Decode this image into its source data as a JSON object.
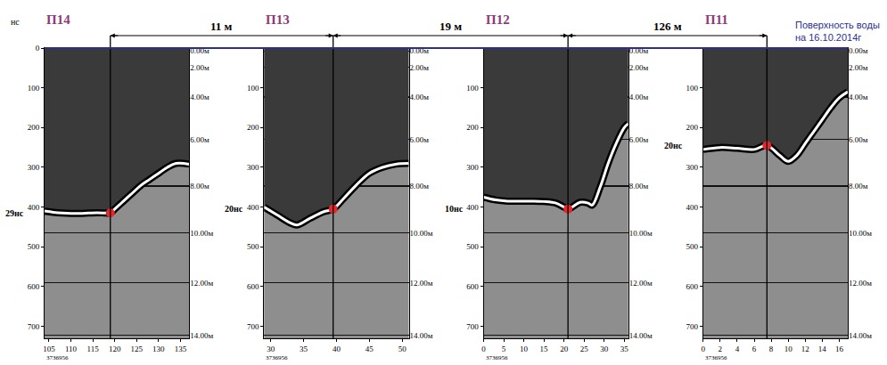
{
  "chart_data": [
    {
      "type": "line",
      "title": "П14",
      "ylabel": "нс",
      "x": [
        104,
        106,
        108,
        110,
        112,
        114,
        116,
        118,
        119,
        120,
        122,
        124,
        126,
        128,
        130,
        132,
        134,
        137
      ],
      "values": [
        410,
        413,
        415,
        416,
        416,
        415,
        414,
        415,
        415,
        405,
        385,
        365,
        345,
        330,
        315,
        300,
        290,
        292
      ],
      "color": "#ffffff",
      "point": {
        "x": 119,
        "y": 415,
        "label": "29нс",
        "color": "#e8262b",
        "marker": "circle"
      },
      "xlim": [
        104,
        137
      ],
      "xticks": [
        105,
        110,
        115,
        120,
        125,
        130,
        135
      ],
      "ylim": [
        0,
        730
      ],
      "yticks": [
        0,
        100,
        200,
        300,
        400,
        500,
        600,
        700
      ],
      "y2lim": [
        0,
        730
      ],
      "y2ticks": [
        {
          "value": 7,
          "label": "0.00м"
        },
        {
          "value": 48,
          "label": "2.00м"
        },
        {
          "value": 123,
          "label": "4.00м"
        },
        {
          "value": 230,
          "label": "6.00м"
        },
        {
          "value": 347,
          "label": "8.00м"
        },
        {
          "value": 465,
          "label": "10.00м"
        },
        {
          "value": 590,
          "label": "12.00м"
        },
        {
          "value": 722,
          "label": "14.00м"
        }
      ],
      "grid": true,
      "note": "3736956",
      "distance_to_next": "11 м"
    },
    {
      "type": "line",
      "title": "П13",
      "x": [
        29,
        31,
        33,
        34,
        36,
        38,
        39.5,
        41,
        43,
        45,
        47,
        49,
        51
      ],
      "values": [
        400,
        420,
        440,
        445,
        428,
        412,
        405,
        380,
        345,
        315,
        300,
        292,
        290
      ],
      "color": "#ffffff",
      "point": {
        "x": 39.5,
        "y": 405,
        "label": "20нс",
        "color": "#e8262b",
        "marker": "circle"
      },
      "xlim": [
        29,
        51
      ],
      "xticks": [
        30,
        35,
        40,
        45,
        50
      ],
      "ylim": [
        0,
        730
      ],
      "yticks": [
        100,
        200,
        300,
        400,
        500,
        600,
        700
      ],
      "y2lim": [
        0,
        730
      ],
      "y2ticks": [
        {
          "value": 7,
          "label": "0.00м"
        },
        {
          "value": 48,
          "label": "2.00м"
        },
        {
          "value": 123,
          "label": "4.00м"
        },
        {
          "value": 230,
          "label": "6.00м"
        },
        {
          "value": 347,
          "label": "8.00м"
        },
        {
          "value": 465,
          "label": "10.00м"
        },
        {
          "value": 590,
          "label": "12.00м"
        },
        {
          "value": 722,
          "label": "14.00м"
        }
      ],
      "grid": true,
      "note": "3736956",
      "distance_to_next": "19 м"
    },
    {
      "type": "line",
      "title": "П12",
      "x": [
        0,
        3,
        6,
        9,
        12,
        15,
        18,
        20,
        21,
        22,
        24,
        26,
        27,
        29,
        31,
        33,
        35,
        36
      ],
      "values": [
        375,
        382,
        385,
        385,
        385,
        386,
        390,
        400,
        405,
        400,
        388,
        390,
        395,
        350,
        290,
        240,
        200,
        190
      ],
      "color": "#ffffff",
      "point": {
        "x": 21,
        "y": 405,
        "label": "10нс",
        "color": "#e8262b",
        "marker": "circle"
      },
      "xlim": [
        0,
        36
      ],
      "xticks": [
        0,
        5,
        10,
        15,
        20,
        25,
        30,
        35
      ],
      "ylim": [
        0,
        730
      ],
      "yticks": [
        100,
        200,
        300,
        400,
        500,
        600,
        700
      ],
      "y2lim": [
        0,
        730
      ],
      "y2ticks": [
        {
          "value": 7,
          "label": "0.00м"
        },
        {
          "value": 48,
          "label": "2.00м"
        },
        {
          "value": 123,
          "label": "4.00м"
        },
        {
          "value": 230,
          "label": "6.00м"
        },
        {
          "value": 347,
          "label": "8.00м"
        },
        {
          "value": 465,
          "label": "10.00м"
        },
        {
          "value": 590,
          "label": "12.00м"
        },
        {
          "value": 722,
          "label": "14.00м"
        }
      ],
      "grid": true,
      "note": "3736956",
      "distance_to_next": "126 м"
    },
    {
      "type": "line",
      "title": "П11",
      "x": [
        0,
        2,
        4,
        6,
        7.5,
        9,
        10,
        11,
        12,
        13,
        14,
        15,
        16,
        17
      ],
      "values": [
        255,
        250,
        252,
        255,
        245,
        270,
        285,
        270,
        240,
        210,
        180,
        150,
        125,
        110
      ],
      "color": "#ffffff",
      "point": {
        "x": 7.5,
        "y": 245,
        "label": "20нс",
        "color": "#e8262b",
        "marker": "circle"
      },
      "xlim": [
        0,
        17
      ],
      "xticks": [
        0,
        2,
        4,
        6,
        8,
        10,
        12,
        14,
        16
      ],
      "ylim": [
        0,
        730
      ],
      "yticks": [
        100,
        200,
        300,
        400,
        500,
        600,
        700
      ],
      "y2lim": [
        0,
        730
      ],
      "y2ticks": [
        {
          "value": 7,
          "label": "0.00м"
        },
        {
          "value": 48,
          "label": "2.00м"
        },
        {
          "value": 123,
          "label": "4.00м"
        },
        {
          "value": 230,
          "label": "6.00м"
        },
        {
          "value": 347,
          "label": "8.00м"
        },
        {
          "value": 465,
          "label": "10.00м"
        },
        {
          "value": 590,
          "label": "12.00м"
        },
        {
          "value": 722,
          "label": "14.00м"
        }
      ],
      "grid": true,
      "note": "3736956"
    }
  ],
  "water_surface": {
    "y": 0,
    "lines": [
      "Поверхность воды",
      "на 16.10.2014г"
    ],
    "color": "#2b2f8f"
  }
}
